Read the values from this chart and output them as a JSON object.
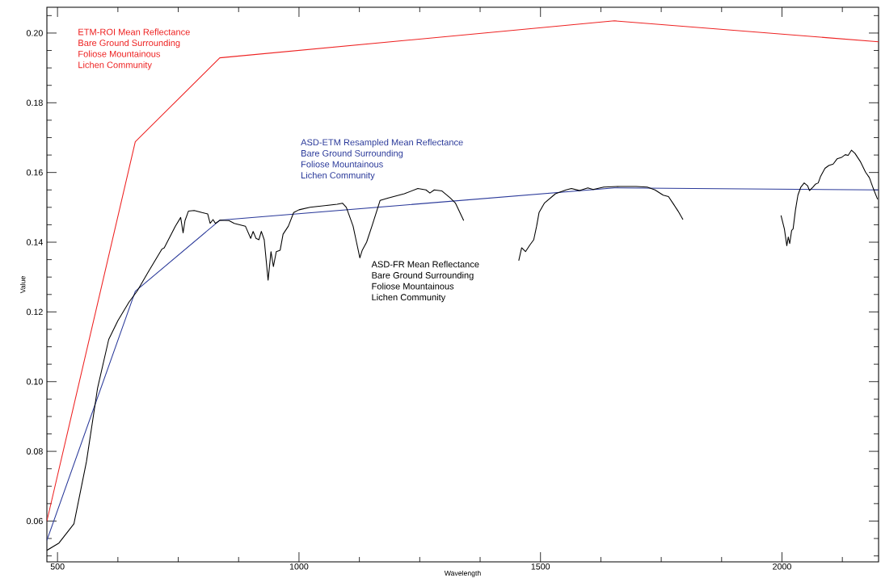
{
  "chart_data": {
    "type": "line",
    "xlabel": "Wavelength",
    "ylabel": "Value",
    "xlim": [
      478,
      2200
    ],
    "ylim": [
      0.0483,
      0.2074
    ],
    "xticks": [
      500,
      {
        "value": 625,
        "label": null
      },
      {
        "value": 750,
        "label": null
      },
      {
        "value": 875,
        "label": null
      },
      1000,
      {
        "value": 1125,
        "label": null
      },
      {
        "value": 1250,
        "label": null
      },
      {
        "value": 1375,
        "label": null
      },
      1500,
      {
        "value": 1625,
        "label": null
      },
      {
        "value": 1750,
        "label": null
      },
      {
        "value": 1875,
        "label": null
      },
      2000,
      {
        "value": 2125,
        "label": null
      }
    ],
    "yticks": [
      {
        "value": 0.05,
        "label": null
      },
      {
        "value": 0.055,
        "label": null
      },
      {
        "value": 0.06,
        "label": "0.06"
      },
      {
        "value": 0.065,
        "label": null
      },
      {
        "value": 0.07,
        "label": null
      },
      {
        "value": 0.075,
        "label": null
      },
      {
        "value": 0.08,
        "label": "0.08"
      },
      {
        "value": 0.085,
        "label": null
      },
      {
        "value": 0.09,
        "label": null
      },
      {
        "value": 0.095,
        "label": null
      },
      {
        "value": 0.1,
        "label": "0.10"
      },
      {
        "value": 0.105,
        "label": null
      },
      {
        "value": 0.11,
        "label": null
      },
      {
        "value": 0.115,
        "label": null
      },
      {
        "value": 0.12,
        "label": "0.12"
      },
      {
        "value": 0.125,
        "label": null
      },
      {
        "value": 0.13,
        "label": null
      },
      {
        "value": 0.135,
        "label": null
      },
      {
        "value": 0.14,
        "label": "0.14"
      },
      {
        "value": 0.145,
        "label": null
      },
      {
        "value": 0.15,
        "label": null
      },
      {
        "value": 0.155,
        "label": null
      },
      {
        "value": 0.16,
        "label": "0.16"
      },
      {
        "value": 0.165,
        "label": null
      },
      {
        "value": 0.17,
        "label": null
      },
      {
        "value": 0.175,
        "label": null
      },
      {
        "value": 0.18,
        "label": "0.18"
      },
      {
        "value": 0.185,
        "label": null
      },
      {
        "value": 0.19,
        "label": null
      },
      {
        "value": 0.195,
        "label": null
      },
      {
        "value": 0.2,
        "label": "0.20"
      },
      {
        "value": 0.205,
        "label": null
      }
    ],
    "annotations": [
      "Bare Ground Surrounding",
      "Foliose Mountainous",
      "Lichen Community",
      "Bare Ground Surrounding",
      "Foliose Mountainous",
      "Lichen Community",
      "Bare Ground Surrounding",
      "Foliose Mountainous",
      "Lichen Community"
    ],
    "series": [
      {
        "name": "ETM-ROI Mean Reflectance",
        "color": "#ee2222",
        "x": [
          478,
          661,
          836,
          1653,
          2200
        ],
        "values": [
          0.06,
          0.1688,
          0.1929,
          0.2035,
          0.1975
        ]
      },
      {
        "name": "ASD-ETM Resampled Mean Reflectance",
        "color": "#2b3a9a",
        "x": [
          478,
          661,
          836,
          1653,
          2200
        ],
        "values": [
          0.0545,
          0.1259,
          0.1463,
          0.1556,
          0.155
        ]
      },
      {
        "name": "ASD-FR Mean Reflectance",
        "color": "#000000",
        "x": [
          478,
          503,
          534,
          560,
          583,
          606,
          625,
          648,
          665,
          688,
          716,
          721,
          744,
          755,
          760,
          764,
          771,
          783,
          799,
          811,
          816,
          822,
          827,
          836,
          855,
          866,
          889,
          900,
          905,
          911,
          917,
          922,
          928,
          936,
          942,
          947,
          953,
          961,
          967,
          978,
          989,
          1000,
          1023,
          1079,
          1090,
          1098,
          1112,
          1118,
          1126,
          1131,
          1140,
          1151,
          1168,
          1185,
          1218,
          1246,
          1263,
          1271,
          1280,
          1296,
          1313,
          1324,
          1341,
          1400,
          1455,
          1461,
          1469,
          1478,
          1486,
          1492,
          1497,
          1508,
          1531,
          1553,
          1564,
          1581,
          1598,
          1609,
          1631,
          1665,
          1698,
          1721,
          1737,
          1754,
          1765,
          1776,
          1785,
          1795,
          1900,
          1998,
          2005,
          2010,
          2013,
          2016,
          2020,
          2023,
          2028,
          2033,
          2039,
          2046,
          2053,
          2057,
          2064,
          2069,
          2075,
          2080,
          2089,
          2097,
          2106,
          2114,
          2123,
          2131,
          2137,
          2144,
          2151,
          2162,
          2173,
          2181,
          2187,
          2191,
          2198
        ],
        "values": [
          0.0516,
          0.0537,
          0.0592,
          0.0771,
          0.0982,
          0.1121,
          0.1175,
          0.1228,
          0.126,
          0.1315,
          0.138,
          0.1384,
          0.1446,
          0.1471,
          0.1427,
          0.1462,
          0.1489,
          0.1491,
          0.1485,
          0.1481,
          0.1454,
          0.1465,
          0.1454,
          0.1463,
          0.1462,
          0.1454,
          0.1446,
          0.1411,
          0.1431,
          0.1411,
          0.1407,
          0.1431,
          0.1407,
          0.1291,
          0.1373,
          0.133,
          0.1373,
          0.1377,
          0.1423,
          0.1446,
          0.1485,
          0.1493,
          0.15,
          0.1509,
          0.1512,
          0.15,
          0.1446,
          0.1407,
          0.1355,
          0.1377,
          0.14,
          0.1446,
          0.152,
          0.1527,
          0.1539,
          0.1554,
          0.155,
          0.1541,
          0.155,
          0.1547,
          0.1527,
          0.1512,
          0.1462,
          null,
          0.1347,
          0.1384,
          0.1373,
          0.1392,
          0.1407,
          0.1446,
          0.1485,
          0.1512,
          0.1539,
          0.155,
          0.1554,
          0.1548,
          0.1556,
          0.1551,
          0.1558,
          0.156,
          0.156,
          0.1558,
          0.155,
          0.1535,
          0.1531,
          0.1508,
          0.1489,
          0.1465,
          null,
          0.1477,
          0.1438,
          0.139,
          0.1415,
          0.1396,
          0.1434,
          0.1438,
          0.1493,
          0.1535,
          0.1558,
          0.157,
          0.1562,
          0.1548,
          0.1558,
          0.1566,
          0.157,
          0.1589,
          0.1612,
          0.162,
          0.1624,
          0.1639,
          0.1643,
          0.1651,
          0.1649,
          0.1664,
          0.1655,
          0.1632,
          0.1601,
          0.1585,
          0.1562,
          0.1547,
          0.1523
        ]
      }
    ]
  }
}
